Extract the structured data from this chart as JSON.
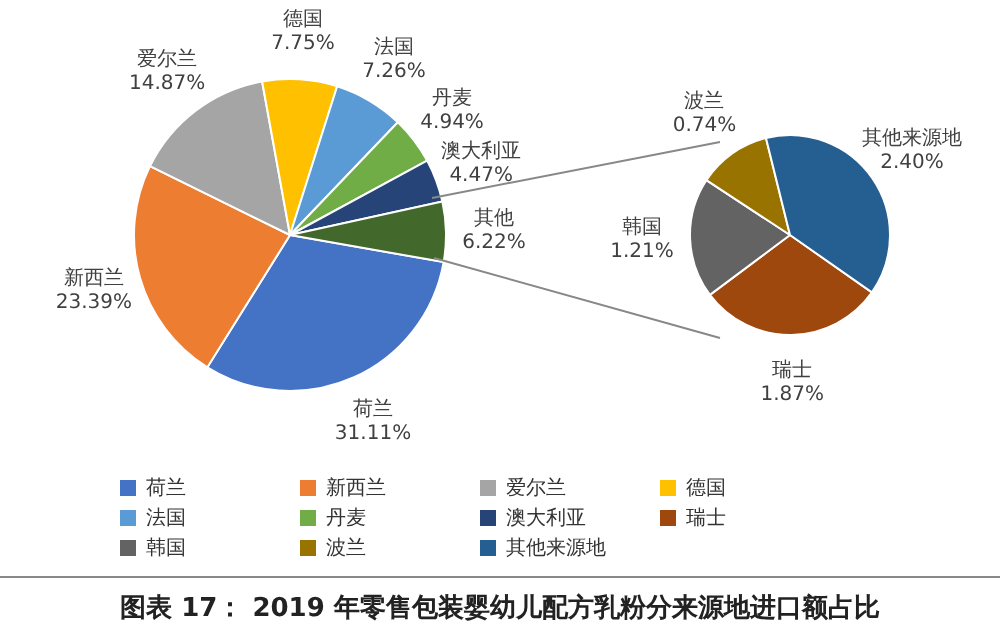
{
  "chart_data": [
    {
      "type": "pie",
      "title": "图表 17： 2019 年零售包装婴幼儿配方乳粉分来源地进口额占比",
      "categories": [
        "荷兰",
        "新西兰",
        "爱尔兰",
        "德国",
        "法国",
        "丹麦",
        "澳大利亚",
        "其他"
      ],
      "values": [
        31.11,
        23.39,
        14.87,
        7.75,
        7.26,
        4.94,
        4.47,
        6.22
      ],
      "colors": [
        "#4472c4",
        "#ed7d31",
        "#a5a5a5",
        "#ffc000",
        "#5b9bd5",
        "#70ad47",
        "#264478",
        "#43682b"
      ],
      "value_labels": [
        "31.11%",
        "23.39%",
        "14.87%",
        "7.75%",
        "7.26%",
        "4.94%",
        "4.47%",
        "6.22%"
      ],
      "legend": "bottom"
    },
    {
      "type": "pie",
      "categories": [
        "瑞士",
        "韩国",
        "波兰",
        "其他来源地"
      ],
      "values": [
        1.87,
        1.21,
        0.74,
        2.4
      ],
      "colors": [
        "#9e480e",
        "#636363",
        "#997300",
        "#255e91"
      ],
      "value_labels": [
        "1.87%",
        "1.21%",
        "0.74%",
        "2.40%"
      ],
      "legend": "bottom"
    }
  ]
}
